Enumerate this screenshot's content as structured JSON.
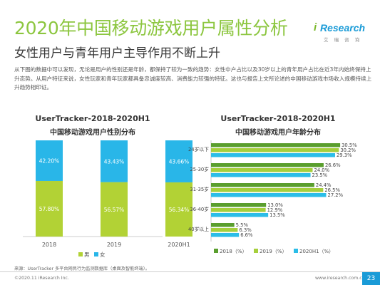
{
  "page": {
    "title": "2020年中国移动游戏用户属性分析",
    "subtitle": "女性用户与青年用户主导作用不断上升",
    "description": "从下图的数据中可以发现，无论是用户的性别还是年龄，都保持了较为一致的趋势：女性中户占比以及30岁以上的青年用户占比在近3年内始终保持上升态势。从用户特征来说，女性玩家和青年玩家都具备忠诚度较高、消费能力较强的特征。这也与报告上文所论述的中国移动游戏市场收入规模持续上升趋势相印证。",
    "logo": {
      "brand": "Research",
      "brand_i": "i",
      "tagline": "艾 瑞 咨 询"
    },
    "source": "来源：UserTracker 多平台网民行为监测数据库（桌面及智能终端）。",
    "copyright": "©2020.11 iResearch Inc.",
    "website": "www.iresearch.com.cn",
    "page_number": "23"
  },
  "colors": {
    "green": "#b2d235",
    "blue": "#29b6e8",
    "dark_green": "#5a9e2e",
    "light_green": "#a6cf3c",
    "cyan": "#2bbde8"
  },
  "chart_data": [
    {
      "type": "bar",
      "stacked": true,
      "title": "UserTracker-2018-2020H1",
      "subtitle": "中国移动游戏用户性别分布",
      "categories": [
        "2018",
        "2019",
        "2020H1"
      ],
      "series": [
        {
          "name": "男",
          "values": [
            57.8,
            56.57,
            56.34
          ],
          "labels": [
            "57.80%",
            "56.57%",
            "56.34%"
          ],
          "color": "#b2d235"
        },
        {
          "name": "女",
          "values": [
            42.2,
            43.43,
            43.66
          ],
          "labels": [
            "42.20%",
            "43.43%",
            "43.66%"
          ],
          "color": "#29b6e8"
        }
      ],
      "ylim": [
        0,
        100
      ],
      "legend": "bottom"
    },
    {
      "type": "bar",
      "orientation": "horizontal",
      "title": "UserTracker-2018-2020H1",
      "subtitle": "中国移动游戏用户年龄分布",
      "categories": [
        "24岁以下",
        "25-30岁",
        "31-35岁",
        "36-40岁",
        "40岁以上"
      ],
      "series": [
        {
          "name": "2018（%）",
          "values": [
            30.5,
            26.6,
            24.4,
            13.0,
            5.5
          ],
          "labels": [
            "30.5%",
            "26.6%",
            "24.4%",
            "13.0%",
            "5.5%"
          ],
          "color": "#5a9e2e"
        },
        {
          "name": "2019（%）",
          "values": [
            30.2,
            24.0,
            26.5,
            12.9,
            6.3
          ],
          "labels": [
            "30.2%",
            "24.0%",
            "26.5%",
            "12.9%",
            "6.3%"
          ],
          "color": "#a6cf3c"
        },
        {
          "name": "2020H1（%）",
          "values": [
            29.3,
            23.5,
            27.2,
            13.5,
            6.6
          ],
          "labels": [
            "29.3%",
            "23.5%",
            "27.2%",
            "13.5%",
            "6.6%"
          ],
          "color": "#2bbde8"
        }
      ],
      "xlim": [
        0,
        32
      ],
      "legend": "bottom"
    }
  ]
}
